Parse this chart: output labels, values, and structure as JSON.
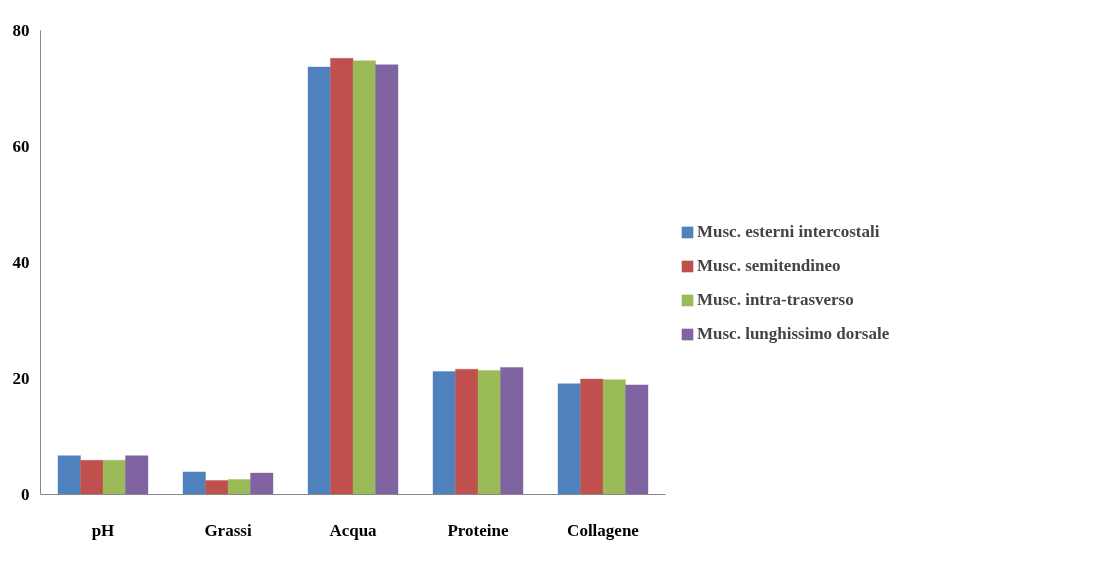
{
  "chart_data": {
    "type": "bar",
    "categories": [
      "pH",
      "Grassi",
      "Acqua",
      "Proteine",
      "Collagene"
    ],
    "series": [
      {
        "name": "Musc. esterni intercostali",
        "color": "#4f81bd",
        "values": [
          6.7,
          3.9,
          73.7,
          21.2,
          19.1
        ]
      },
      {
        "name": "Musc. semitendineo",
        "color": "#c0504d",
        "values": [
          5.9,
          2.4,
          75.2,
          21.6,
          19.9
        ]
      },
      {
        "name": "Musc. intra-trasverso",
        "color": "#9bbb59",
        "values": [
          5.9,
          2.6,
          74.8,
          21.4,
          19.8
        ]
      },
      {
        "name": "Musc. lunghissimo dorsale",
        "color": "#8064a2",
        "values": [
          6.7,
          3.7,
          74.1,
          21.9,
          18.9
        ]
      }
    ],
    "ylim": [
      0,
      80
    ],
    "yticks": [
      0,
      20,
      40,
      60,
      80
    ],
    "grid": false,
    "legend": "right"
  }
}
